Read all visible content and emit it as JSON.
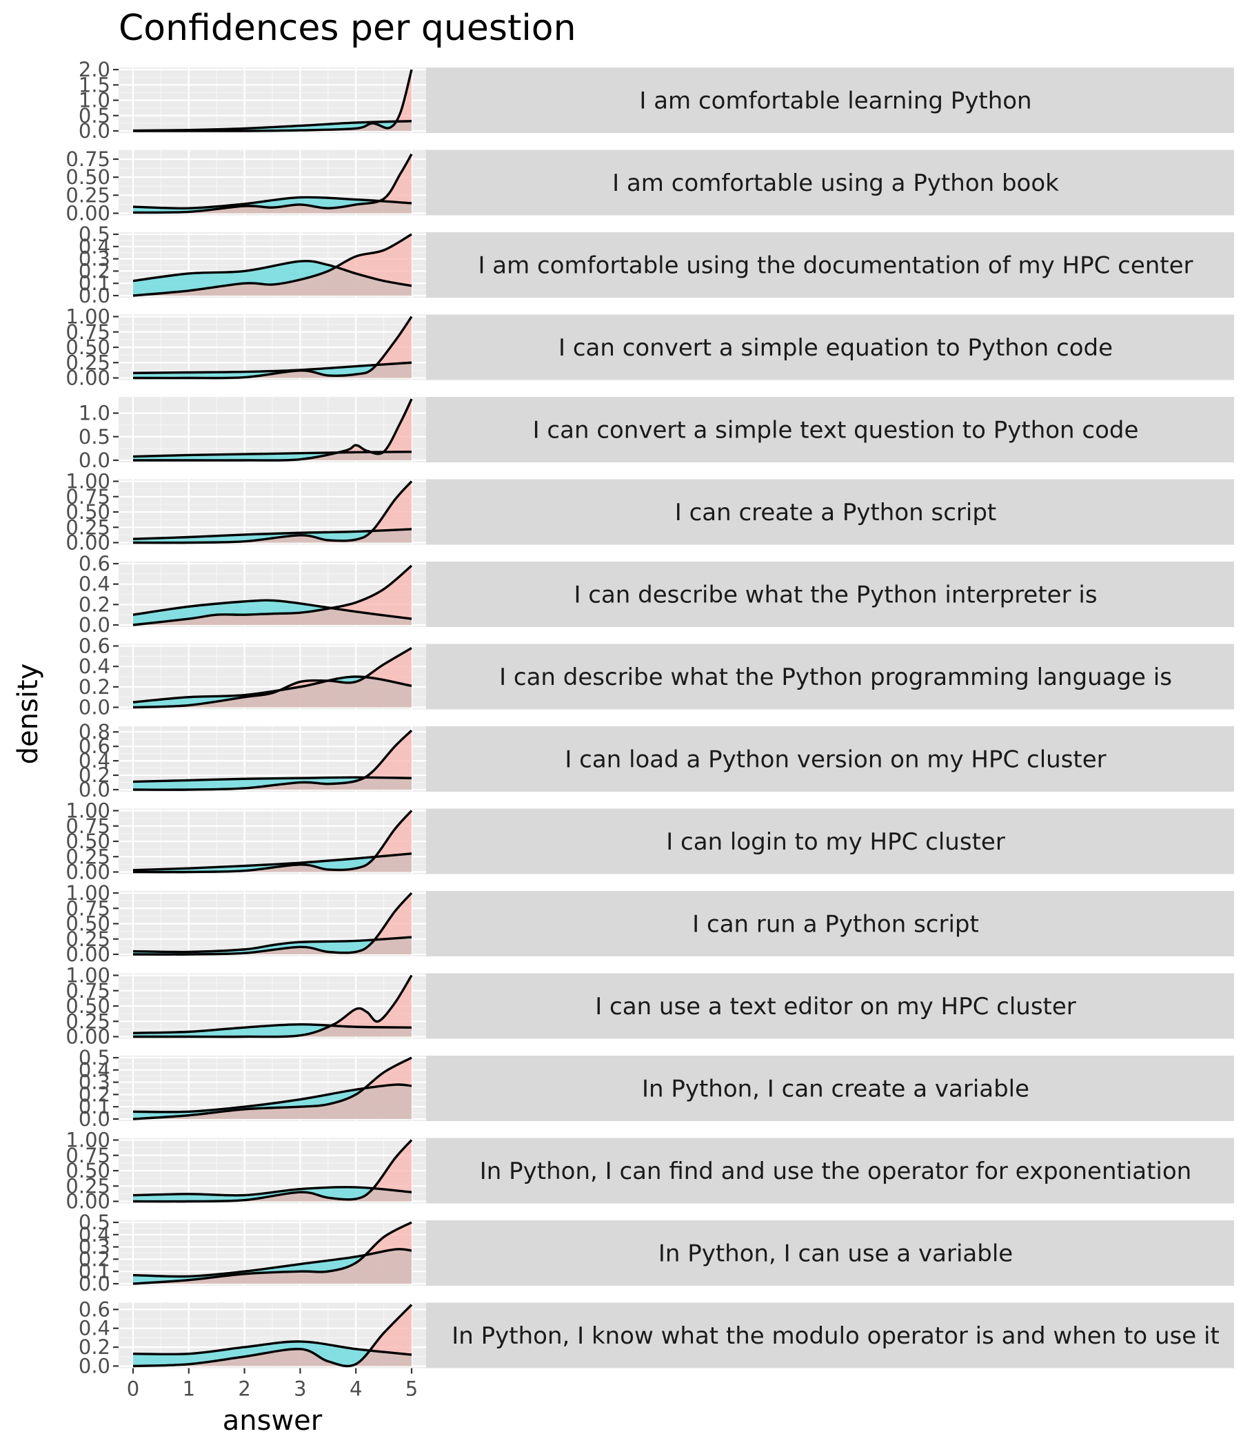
{
  "chart_data": {
    "type": "area",
    "subtype": "faceted density plot",
    "title": "Confidences per question",
    "xlabel": "answer",
    "ylabel": "density",
    "x_ticks": [
      0,
      1,
      2,
      3,
      4,
      5
    ],
    "xlim": [
      0,
      5
    ],
    "grid": true,
    "series_colors": {
      "pink": "#F8766D",
      "teal": "#00BFC4",
      "pink_fill": "#f9b2ab",
      "teal_fill": "#74dcdf"
    },
    "facets": [
      {
        "label": "I am comfortable learning Python",
        "ylim": [
          0,
          2.0
        ],
        "y_ticks": [
          "0.0",
          "0.5",
          "1.0",
          "1.5",
          "2.0"
        ],
        "series": [
          {
            "name": "pink",
            "x": [
              0,
              1,
              2,
              3,
              4,
              4.3,
              4.6,
              4.8,
              5
            ],
            "y": [
              0,
              0,
              0,
              0.02,
              0.08,
              0.25,
              0.1,
              0.6,
              2.0
            ]
          },
          {
            "name": "teal",
            "x": [
              0,
              1,
              2,
              3,
              4,
              5
            ],
            "y": [
              0.01,
              0.03,
              0.08,
              0.17,
              0.27,
              0.32
            ]
          }
        ]
      },
      {
        "label": "I am comfortable using a Python book",
        "ylim": [
          0,
          0.85
        ],
        "y_ticks": [
          "0.00",
          "0.25",
          "0.50",
          "0.75"
        ],
        "series": [
          {
            "name": "pink",
            "x": [
              0,
              1,
              2,
              2.5,
              3,
              3.5,
              4,
              4.5,
              4.8,
              5
            ],
            "y": [
              0.01,
              0.02,
              0.1,
              0.08,
              0.12,
              0.07,
              0.12,
              0.2,
              0.55,
              0.82
            ]
          },
          {
            "name": "teal",
            "x": [
              0,
              1,
              2,
              3,
              4,
              5
            ],
            "y": [
              0.09,
              0.07,
              0.13,
              0.22,
              0.19,
              0.14
            ]
          }
        ]
      },
      {
        "label": "I am comfortable using the documentation of my HPC center",
        "ylim": [
          0,
          0.5
        ],
        "y_ticks": [
          "0.0",
          "0.1",
          "0.2",
          "0.3",
          "0.4",
          "0.5"
        ],
        "series": [
          {
            "name": "pink",
            "x": [
              0,
              1,
              2,
              2.5,
              3,
              3.5,
              4,
              4.5,
              5
            ],
            "y": [
              0,
              0.04,
              0.1,
              0.09,
              0.13,
              0.2,
              0.32,
              0.37,
              0.5
            ]
          },
          {
            "name": "teal",
            "x": [
              0,
              1,
              2,
              3,
              3.5,
              4,
              4.5,
              5
            ],
            "y": [
              0.12,
              0.18,
              0.2,
              0.28,
              0.25,
              0.18,
              0.12,
              0.08
            ]
          }
        ]
      },
      {
        "label": "I can convert a simple equation to Python code",
        "ylim": [
          0,
          1.0
        ],
        "y_ticks": [
          "0.00",
          "0.25",
          "0.50",
          "0.75",
          "1.00"
        ],
        "series": [
          {
            "name": "pink",
            "x": [
              0,
              1,
              2,
              3,
              3.5,
              4,
              4.3,
              4.7,
              5
            ],
            "y": [
              0,
              0,
              0.01,
              0.12,
              0.04,
              0.06,
              0.15,
              0.6,
              1.0
            ]
          },
          {
            "name": "teal",
            "x": [
              0,
              1,
              2,
              3,
              4,
              5
            ],
            "y": [
              0.08,
              0.09,
              0.1,
              0.13,
              0.19,
              0.25
            ]
          }
        ]
      },
      {
        "label": "I can convert a simple text question to Python code",
        "ylim": [
          0,
          1.3
        ],
        "y_ticks": [
          "0.0",
          "0.5",
          "1.0"
        ],
        "series": [
          {
            "name": "pink",
            "x": [
              0,
              1,
              2,
              3,
              3.8,
              4,
              4.2,
              4.5,
              4.8,
              5
            ],
            "y": [
              0,
              0,
              0,
              0.02,
              0.2,
              0.32,
              0.2,
              0.18,
              0.8,
              1.3
            ]
          },
          {
            "name": "teal",
            "x": [
              0,
              1,
              2,
              3,
              4,
              5
            ],
            "y": [
              0.08,
              0.11,
              0.13,
              0.15,
              0.17,
              0.18
            ]
          }
        ]
      },
      {
        "label": "I can create a Python script",
        "ylim": [
          0,
          1.0
        ],
        "y_ticks": [
          "0.00",
          "0.25",
          "0.50",
          "0.75",
          "1.00"
        ],
        "series": [
          {
            "name": "pink",
            "x": [
              0,
              1,
              2,
              3,
              3.5,
              4,
              4.3,
              4.7,
              5
            ],
            "y": [
              0,
              0,
              0.02,
              0.12,
              0.04,
              0.05,
              0.2,
              0.7,
              1.0
            ]
          },
          {
            "name": "teal",
            "x": [
              0,
              1,
              2,
              3,
              4,
              5
            ],
            "y": [
              0.06,
              0.09,
              0.13,
              0.16,
              0.18,
              0.22
            ]
          }
        ]
      },
      {
        "label": "I can describe what the Python interpreter is",
        "ylim": [
          0,
          0.6
        ],
        "y_ticks": [
          "0.0",
          "0.2",
          "0.4",
          "0.6"
        ],
        "series": [
          {
            "name": "pink",
            "x": [
              0,
              1,
              1.5,
              2,
              2.5,
              3,
              3.5,
              4,
              4.5,
              5
            ],
            "y": [
              0,
              0.06,
              0.1,
              0.1,
              0.11,
              0.12,
              0.16,
              0.22,
              0.35,
              0.58
            ]
          },
          {
            "name": "teal",
            "x": [
              0,
              1,
              2,
              2.5,
              3,
              4,
              5
            ],
            "y": [
              0.1,
              0.18,
              0.23,
              0.24,
              0.21,
              0.13,
              0.06
            ]
          }
        ]
      },
      {
        "label": "I can describe what the Python programming language is",
        "ylim": [
          0,
          0.6
        ],
        "y_ticks": [
          "0.0",
          "0.2",
          "0.4",
          "0.6"
        ],
        "series": [
          {
            "name": "pink",
            "x": [
              0,
              1,
              2,
              2.5,
              3,
              3.5,
              4,
              4.5,
              5
            ],
            "y": [
              0,
              0.02,
              0.1,
              0.14,
              0.25,
              0.26,
              0.25,
              0.42,
              0.58
            ]
          },
          {
            "name": "teal",
            "x": [
              0,
              1,
              2,
              3,
              4,
              5
            ],
            "y": [
              0.05,
              0.1,
              0.12,
              0.2,
              0.3,
              0.21
            ]
          }
        ]
      },
      {
        "label": "I can load a Python version on my HPC cluster",
        "ylim": [
          0,
          0.85
        ],
        "y_ticks": [
          "0.0",
          "0.2",
          "0.4",
          "0.6",
          "0.8"
        ],
        "series": [
          {
            "name": "pink",
            "x": [
              0,
              1,
              2,
              3,
              3.5,
              4,
              4.3,
              4.7,
              5
            ],
            "y": [
              0,
              0,
              0.02,
              0.1,
              0.08,
              0.12,
              0.25,
              0.6,
              0.82
            ]
          },
          {
            "name": "teal",
            "x": [
              0,
              1,
              2,
              3,
              4,
              5
            ],
            "y": [
              0.11,
              0.13,
              0.15,
              0.16,
              0.17,
              0.16
            ]
          }
        ]
      },
      {
        "label": "I can login to my HPC cluster",
        "ylim": [
          0,
          1.0
        ],
        "y_ticks": [
          "0.00",
          "0.25",
          "0.50",
          "0.75",
          "1.00"
        ],
        "series": [
          {
            "name": "pink",
            "x": [
              0,
              1,
              2,
              3,
              3.5,
              4,
              4.3,
              4.7,
              5
            ],
            "y": [
              0,
              0,
              0.02,
              0.12,
              0.04,
              0.06,
              0.2,
              0.7,
              1.0
            ]
          },
          {
            "name": "teal",
            "x": [
              0,
              1,
              2,
              3,
              4,
              5
            ],
            "y": [
              0.03,
              0.06,
              0.1,
              0.15,
              0.22,
              0.3
            ]
          }
        ]
      },
      {
        "label": "I can run a Python script",
        "ylim": [
          0,
          1.0
        ],
        "y_ticks": [
          "0.00",
          "0.25",
          "0.50",
          "0.75",
          "1.00"
        ],
        "series": [
          {
            "name": "pink",
            "x": [
              0,
              1,
              2,
              3,
              3.5,
              4,
              4.3,
              4.7,
              5
            ],
            "y": [
              0,
              0,
              0.02,
              0.12,
              0.04,
              0.04,
              0.2,
              0.7,
              1.0
            ]
          },
          {
            "name": "teal",
            "x": [
              0,
              1,
              2,
              2.5,
              3,
              4,
              5
            ],
            "y": [
              0.05,
              0.04,
              0.08,
              0.15,
              0.2,
              0.22,
              0.28
            ]
          }
        ]
      },
      {
        "label": "I can use a text editor on my HPC cluster",
        "ylim": [
          0,
          1.0
        ],
        "y_ticks": [
          "0.00",
          "0.25",
          "0.50",
          "0.75",
          "1.00"
        ],
        "series": [
          {
            "name": "pink",
            "x": [
              0,
              1,
              2,
              3,
              3.6,
              4,
              4.2,
              4.4,
              4.7,
              5
            ],
            "y": [
              0,
              0,
              0,
              0.02,
              0.2,
              0.45,
              0.4,
              0.25,
              0.55,
              1.0
            ]
          },
          {
            "name": "teal",
            "x": [
              0,
              1,
              2,
              3,
              4,
              5
            ],
            "y": [
              0.06,
              0.08,
              0.15,
              0.2,
              0.16,
              0.15
            ]
          }
        ]
      },
      {
        "label": "In Python, I can create a variable",
        "ylim": [
          0,
          0.5
        ],
        "y_ticks": [
          "0.0",
          "0.1",
          "0.2",
          "0.3",
          "0.4",
          "0.5"
        ],
        "series": [
          {
            "name": "pink",
            "x": [
              0,
              1,
              2,
              3,
              3.5,
              4,
              4.5,
              5
            ],
            "y": [
              0,
              0.03,
              0.08,
              0.1,
              0.12,
              0.2,
              0.38,
              0.5
            ]
          },
          {
            "name": "teal",
            "x": [
              0,
              1,
              2,
              3,
              4,
              4.7,
              5
            ],
            "y": [
              0.06,
              0.06,
              0.1,
              0.16,
              0.24,
              0.28,
              0.27
            ]
          }
        ]
      },
      {
        "label": "In Python, I can find and use the operator for exponentiation",
        "ylim": [
          0,
          1.0
        ],
        "y_ticks": [
          "0.00",
          "0.25",
          "0.50",
          "0.75",
          "1.00"
        ],
        "series": [
          {
            "name": "pink",
            "x": [
              0,
              1,
              2,
              3,
              3.5,
              4,
              4.3,
              4.7,
              5
            ],
            "y": [
              0,
              0,
              0.02,
              0.15,
              0.06,
              0.04,
              0.2,
              0.7,
              1.0
            ]
          },
          {
            "name": "teal",
            "x": [
              0,
              1,
              2,
              3,
              4,
              5
            ],
            "y": [
              0.1,
              0.12,
              0.1,
              0.2,
              0.23,
              0.15
            ]
          }
        ]
      },
      {
        "label": "In Python, I can use a variable",
        "ylim": [
          0,
          0.5
        ],
        "y_ticks": [
          "0.0",
          "0.1",
          "0.2",
          "0.3",
          "0.4",
          "0.5"
        ],
        "series": [
          {
            "name": "pink",
            "x": [
              0,
              1,
              2,
              3,
              3.5,
              4,
              4.5,
              5
            ],
            "y": [
              0,
              0.03,
              0.08,
              0.1,
              0.1,
              0.17,
              0.38,
              0.5
            ]
          },
          {
            "name": "teal",
            "x": [
              0,
              1,
              2,
              3,
              4,
              4.7,
              5
            ],
            "y": [
              0.07,
              0.06,
              0.1,
              0.16,
              0.22,
              0.28,
              0.27
            ]
          }
        ]
      },
      {
        "label": "In Python, I know what the modulo operator is and when to use it",
        "ylim": [
          0,
          0.65
        ],
        "y_ticks": [
          "0.0",
          "0.2",
          "0.4",
          "0.6"
        ],
        "series": [
          {
            "name": "pink",
            "x": [
              0,
              1,
              2,
              3,
              3.5,
              4,
              4.5,
              5
            ],
            "y": [
              0,
              0.02,
              0.1,
              0.18,
              0.05,
              0.02,
              0.35,
              0.65
            ]
          },
          {
            "name": "teal",
            "x": [
              0,
              1,
              2,
              3,
              4,
              5
            ],
            "y": [
              0.13,
              0.13,
              0.2,
              0.26,
              0.18,
              0.12
            ]
          }
        ]
      }
    ]
  }
}
